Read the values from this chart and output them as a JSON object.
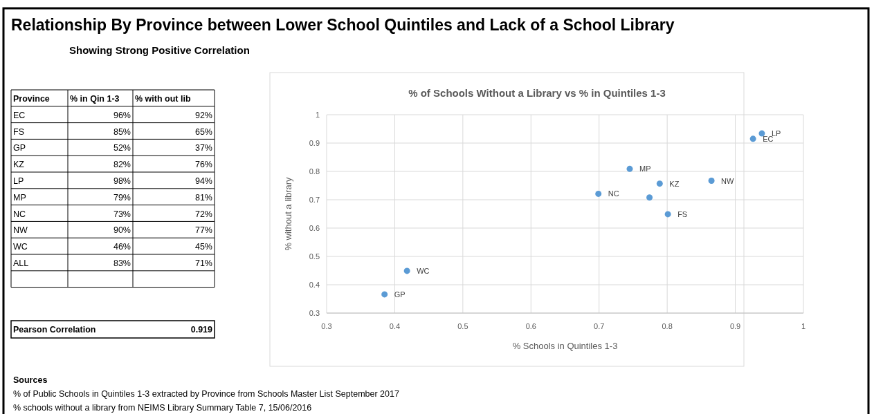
{
  "chart_data": [
    {
      "type": "other",
      "title": "Relationship By Province between Lower School Quintiles and Lack of a School Library",
      "subtitle": "Showing Strong Positive Correlation",
      "annotations": [
        "Province",
        "% in Qin 1-3",
        "% with out lib",
        "EC",
        "96%",
        "92%",
        "FS",
        "85%",
        "65%",
        "GP",
        "52%",
        "37%",
        "KZ",
        "82%",
        "76%",
        "LP",
        "98%",
        "94%",
        "MP",
        "79%",
        "81%",
        "NC",
        "73%",
        "72%",
        "NW",
        "90%",
        "77%",
        "WC",
        "46%",
        "45%",
        "ALL",
        "83%",
        "71%",
        "Pearson Correlation",
        "0.919",
        "Sources",
        "% of Public Schools in Quintiles 1-3  extracted by Province from Schools Master List September 2017",
        "% schools without a library from NEIMS Library Summary Table 7, 15/06/2016"
      ]
    },
    {
      "type": "scatter",
      "title": "% of Schools Without a Library vs % in Quintiles 1-3",
      "xlabel": "% Schools in Quintiles 1-3",
      "ylabel": "% without a library",
      "series": [
        {
          "color": "#5b9bd5",
          "x": [
            0.926,
            0.801,
            0.385,
            0.789,
            0.939,
            0.745,
            0.699,
            0.865,
            0.418,
            0.774
          ],
          "values": [
            0.915,
            0.649,
            0.366,
            0.757,
            0.934,
            0.809,
            0.721,
            0.767,
            0.449,
            0.708
          ]
        }
      ],
      "annotations": [
        {
          "text": "EC",
          "x": 0.926,
          "y": 0.915
        },
        {
          "text": "FS",
          "x": 0.801,
          "y": 0.649
        },
        {
          "text": "GP",
          "x": 0.385,
          "y": 0.366
        },
        {
          "text": "KZ",
          "x": 0.789,
          "y": 0.757
        },
        {
          "text": "LP",
          "x": 0.939,
          "y": 0.934
        },
        {
          "text": "MP",
          "x": 0.745,
          "y": 0.809
        },
        {
          "text": "NC",
          "x": 0.699,
          "y": 0.721
        },
        {
          "text": "NW",
          "x": 0.865,
          "y": 0.767
        },
        {
          "text": "WC",
          "x": 0.418,
          "y": 0.449
        }
      ],
      "xlim": [
        0.3,
        1
      ],
      "xticks": [
        0.3,
        0.4,
        0.5,
        0.6,
        0.7,
        0.8,
        0.9,
        1
      ],
      "ylim": [
        0.3,
        1
      ],
      "yticks": [
        0.3,
        0.4,
        0.5,
        0.6,
        0.7,
        0.8,
        0.9,
        1
      ],
      "grid": true,
      "marker": "circle"
    }
  ]
}
